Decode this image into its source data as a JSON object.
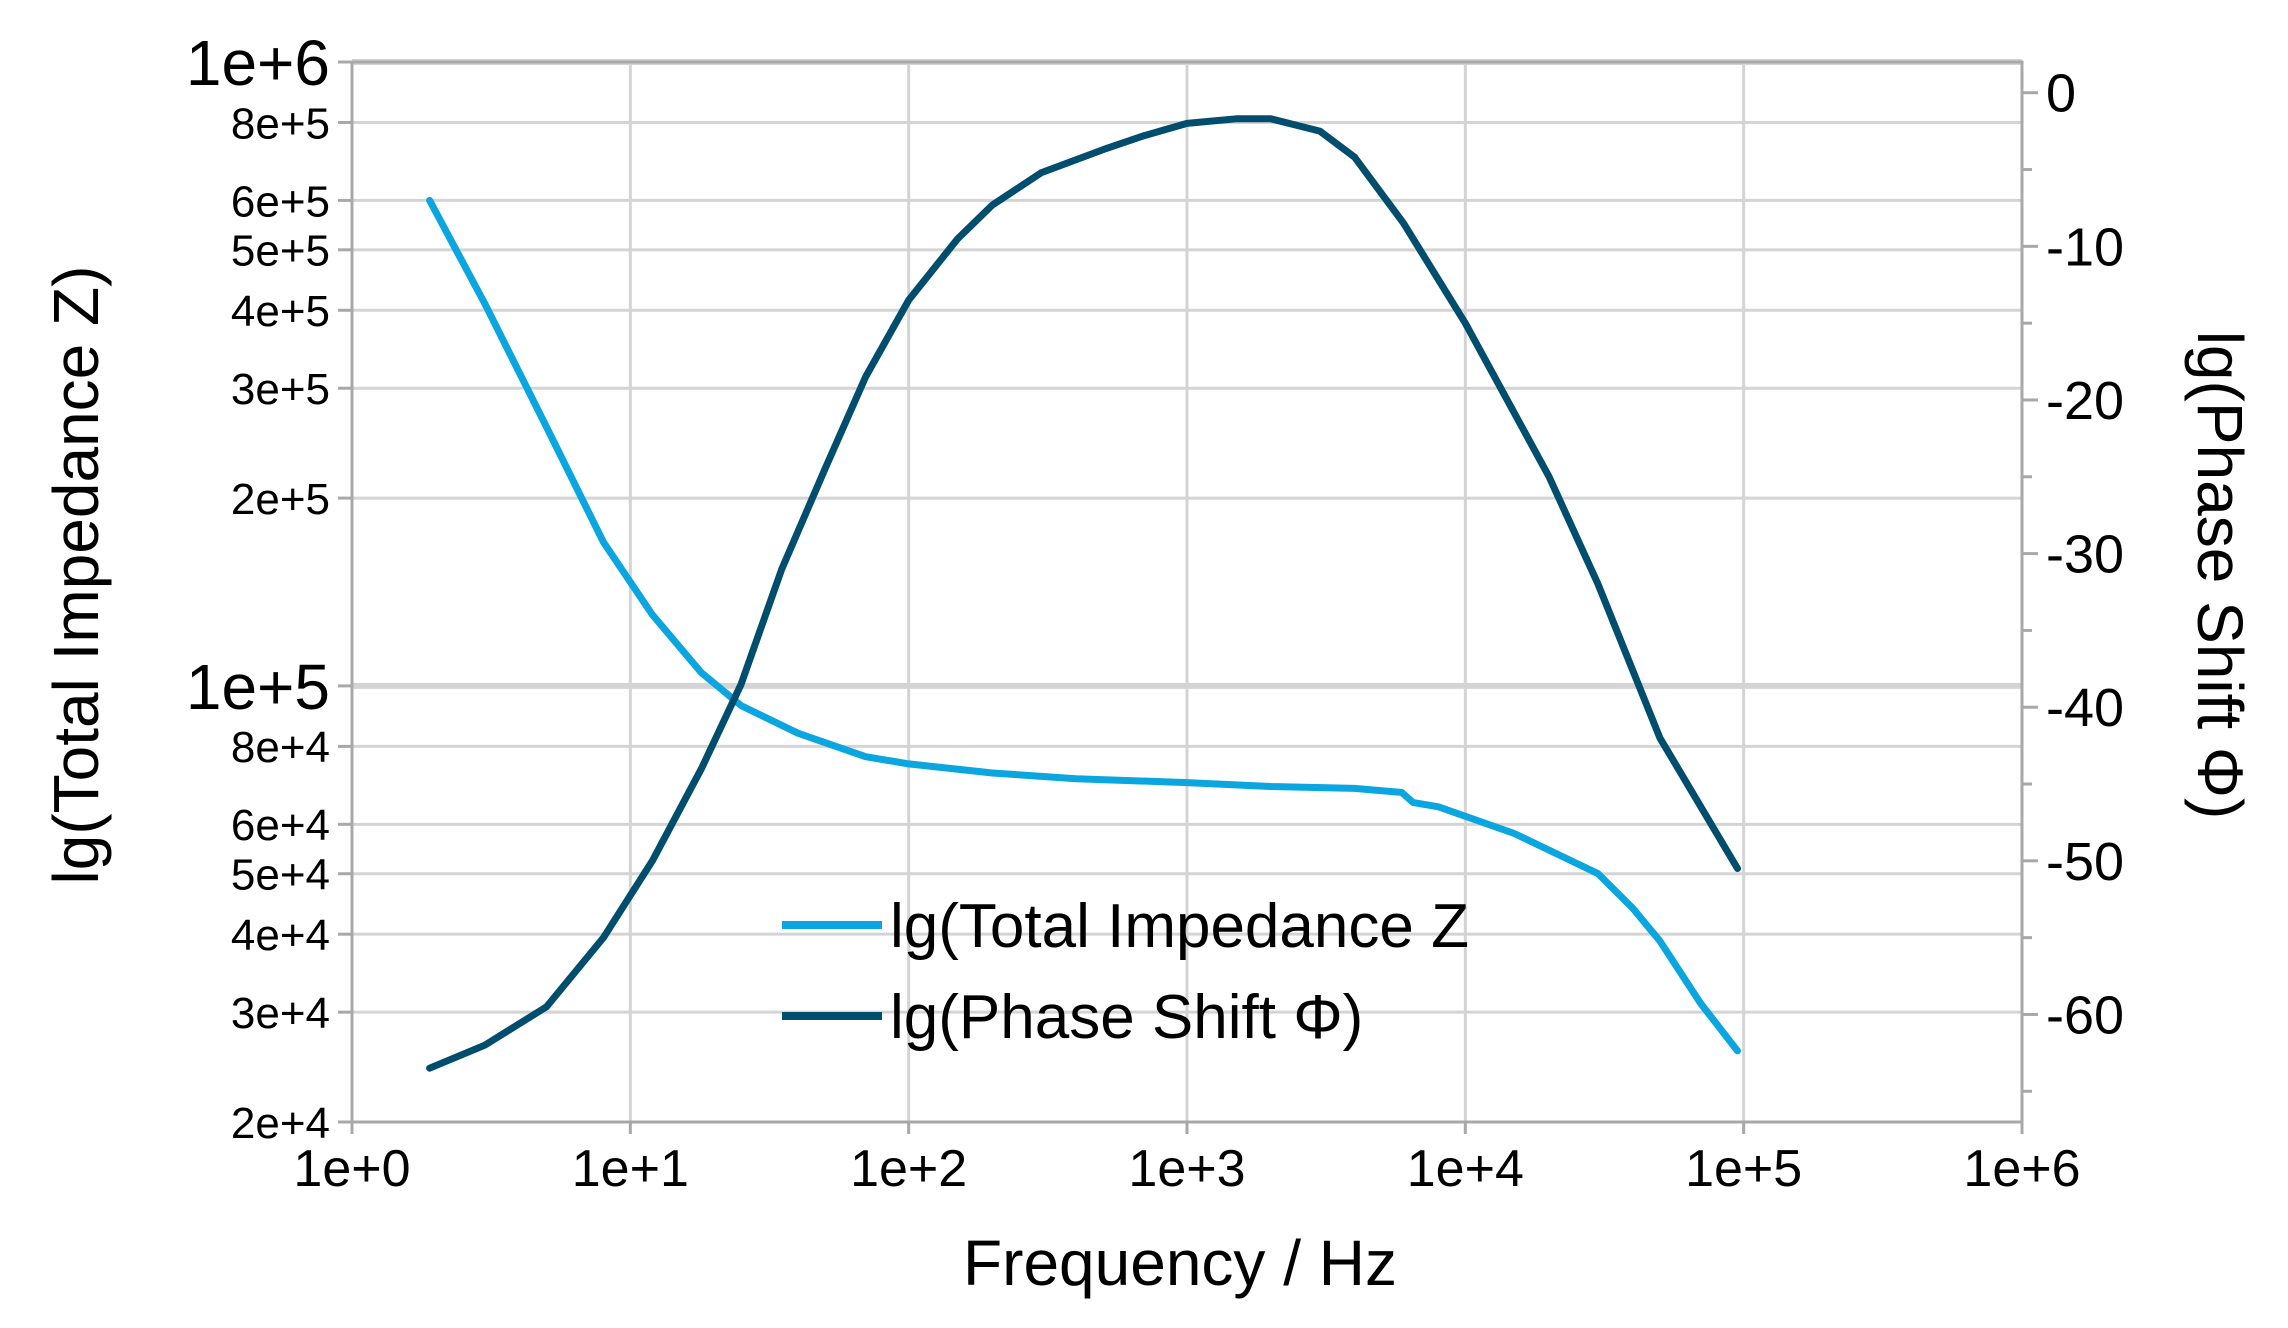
{
  "chart_data": {
    "type": "line",
    "xscale": "log",
    "xlabel": "Frequency / Hz",
    "ylabel_left": "lg(Total Impedance Z)",
    "ylabel_right": "lg(Phase Shift Φ)",
    "xlim": [
      1,
      1000000
    ],
    "ylim_left": [
      20000,
      1000000
    ],
    "ylim_right": [
      -67,
      2
    ],
    "yscale_left": "log",
    "grid": true,
    "legend_position": "bottom-center",
    "x_ticks": [
      {
        "value": 1,
        "label": "1e+0"
      },
      {
        "value": 10,
        "label": "1e+1"
      },
      {
        "value": 100,
        "label": "1e+2"
      },
      {
        "value": 1000,
        "label": "1e+3"
      },
      {
        "value": 10000,
        "label": "1e+4"
      },
      {
        "value": 100000,
        "label": "1e+5"
      },
      {
        "value": 1000000,
        "label": "1e+6"
      }
    ],
    "y_left_ticks": [
      {
        "value": 1000000,
        "label": "1e+6",
        "major": true
      },
      {
        "value": 800000,
        "label": "8e+5"
      },
      {
        "value": 600000,
        "label": "6e+5"
      },
      {
        "value": 500000,
        "label": "5e+5"
      },
      {
        "value": 400000,
        "label": "4e+5"
      },
      {
        "value": 300000,
        "label": "3e+5"
      },
      {
        "value": 200000,
        "label": "2e+5"
      },
      {
        "value": 100000,
        "label": "1e+5",
        "major": true
      },
      {
        "value": 80000,
        "label": "8e+4"
      },
      {
        "value": 60000,
        "label": "6e+4"
      },
      {
        "value": 50000,
        "label": "5e+4"
      },
      {
        "value": 40000,
        "label": "4e+4"
      },
      {
        "value": 30000,
        "label": "3e+4"
      },
      {
        "value": 20000,
        "label": "2e+4"
      }
    ],
    "y_right_ticks": [
      {
        "value": 0,
        "label": "0"
      },
      {
        "value": -10,
        "label": "-10"
      },
      {
        "value": -20,
        "label": "-20"
      },
      {
        "value": -30,
        "label": "-30"
      },
      {
        "value": -40,
        "label": "-40"
      },
      {
        "value": -50,
        "label": "-50"
      },
      {
        "value": -60,
        "label": "-60"
      }
    ],
    "series": [
      {
        "name": "lg(Total Impedance Z",
        "axis": "left",
        "color": "#0ba5e0",
        "x": [
          1.9,
          3,
          5,
          8,
          12,
          18,
          25,
          40,
          70,
          100,
          200,
          400,
          1000,
          2000,
          4000,
          5900,
          6500,
          8000,
          15000,
          25000,
          30000,
          40000,
          50000,
          70000,
          95000
        ],
        "y": [
          600000,
          410000,
          260000,
          170000,
          130000,
          105000,
          93000,
          84000,
          77000,
          75000,
          72500,
          71000,
          70000,
          69000,
          68500,
          67500,
          65000,
          64000,
          58000,
          52000,
          50000,
          44000,
          39000,
          31000,
          26000
        ]
      },
      {
        "name": "lg(Phase Shift Φ)",
        "axis": "right",
        "color": "#004d6d",
        "x": [
          1.9,
          3,
          5,
          8,
          12,
          18,
          25,
          35,
          50,
          70,
          100,
          150,
          200,
          300,
          500,
          700,
          1000,
          1500,
          2000,
          3000,
          4000,
          6000,
          10000,
          20000,
          30000,
          50000,
          95000
        ],
        "y": [
          -63.5,
          -62,
          -59.5,
          -55,
          -50,
          -44,
          -38.5,
          -31,
          -24.5,
          -18.5,
          -13.5,
          -9.5,
          -7.3,
          -5.2,
          -3.7,
          -2.8,
          -2,
          -1.7,
          -1.7,
          -2.5,
          -4.2,
          -8.5,
          -15,
          -25,
          -32,
          -42,
          -50.5
        ]
      }
    ]
  }
}
